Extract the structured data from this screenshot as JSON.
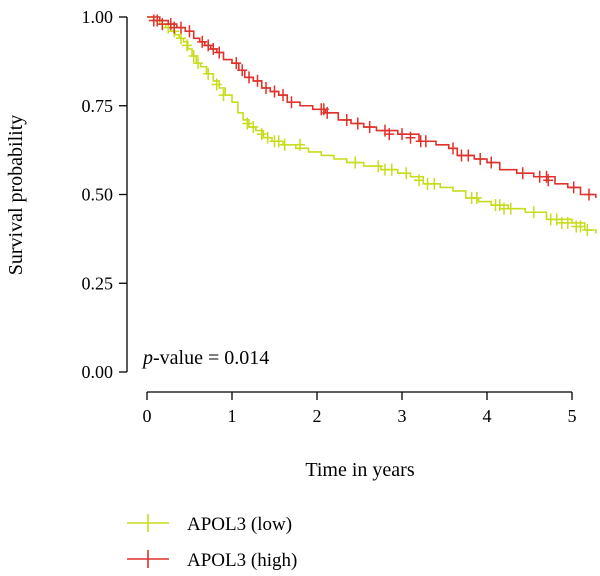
{
  "chart_data": {
    "type": "line",
    "subtype": "kaplan-meier-survival",
    "title": "",
    "xlabel": "Time in years",
    "ylabel": "Survival probability",
    "xlim": [
      -0.25,
      5.3
    ],
    "ylim": [
      0,
      1.0
    ],
    "x_ticks": [
      0,
      1,
      2,
      3,
      4,
      5
    ],
    "x_tick_labels": [
      "0",
      "1",
      "2",
      "3",
      "4",
      "5"
    ],
    "y_ticks": [
      0,
      0.25,
      0.5,
      0.75,
      1.0
    ],
    "y_tick_labels": [
      "0.00",
      "0.25",
      "0.50",
      "0.75",
      "1.00"
    ],
    "grid": false,
    "legend_position": "bottom-left",
    "annotation": {
      "italic": "p",
      "rest": "-value = 0.014"
    },
    "series": [
      {
        "name": "APOL3 (low)",
        "color": "#c8dc1e",
        "steps": [
          [
            0,
            1.0
          ],
          [
            0.08,
            0.99
          ],
          [
            0.15,
            0.98
          ],
          [
            0.22,
            0.97
          ],
          [
            0.28,
            0.96
          ],
          [
            0.33,
            0.95
          ],
          [
            0.38,
            0.94
          ],
          [
            0.43,
            0.93
          ],
          [
            0.48,
            0.91
          ],
          [
            0.53,
            0.89
          ],
          [
            0.58,
            0.87
          ],
          [
            0.63,
            0.86
          ],
          [
            0.7,
            0.84
          ],
          [
            0.78,
            0.82
          ],
          [
            0.85,
            0.8
          ],
          [
            0.92,
            0.78
          ],
          [
            1.0,
            0.76
          ],
          [
            1.07,
            0.73
          ],
          [
            1.13,
            0.71
          ],
          [
            1.2,
            0.69
          ],
          [
            1.28,
            0.68
          ],
          [
            1.37,
            0.66
          ],
          [
            1.47,
            0.65
          ],
          [
            1.6,
            0.64
          ],
          [
            1.75,
            0.63
          ],
          [
            1.9,
            0.62
          ],
          [
            2.05,
            0.61
          ],
          [
            2.2,
            0.6
          ],
          [
            2.35,
            0.59
          ],
          [
            2.55,
            0.58
          ],
          [
            2.75,
            0.57
          ],
          [
            2.95,
            0.56
          ],
          [
            3.1,
            0.55
          ],
          [
            3.25,
            0.53
          ],
          [
            3.45,
            0.52
          ],
          [
            3.6,
            0.51
          ],
          [
            3.75,
            0.49
          ],
          [
            3.9,
            0.48
          ],
          [
            4.05,
            0.47
          ],
          [
            4.25,
            0.46
          ],
          [
            4.45,
            0.45
          ],
          [
            4.7,
            0.43
          ],
          [
            5.0,
            0.42
          ],
          [
            5.15,
            0.4
          ],
          [
            5.28,
            0.39
          ]
        ],
        "censored": [
          [
            0.25,
            0.97
          ],
          [
            0.32,
            0.96
          ],
          [
            0.4,
            0.94
          ],
          [
            0.47,
            0.92
          ],
          [
            0.55,
            0.89
          ],
          [
            0.6,
            0.87
          ],
          [
            0.72,
            0.84
          ],
          [
            0.82,
            0.81
          ],
          [
            0.9,
            0.78
          ],
          [
            1.18,
            0.7
          ],
          [
            1.25,
            0.69
          ],
          [
            1.35,
            0.67
          ],
          [
            1.42,
            0.66
          ],
          [
            1.5,
            0.65
          ],
          [
            1.55,
            0.65
          ],
          [
            1.62,
            0.64
          ],
          [
            1.8,
            0.64
          ],
          [
            2.45,
            0.59
          ],
          [
            2.72,
            0.58
          ],
          [
            2.8,
            0.57
          ],
          [
            2.88,
            0.57
          ],
          [
            3.05,
            0.56
          ],
          [
            3.2,
            0.54
          ],
          [
            3.3,
            0.53
          ],
          [
            3.38,
            0.53
          ],
          [
            3.82,
            0.49
          ],
          [
            3.88,
            0.49
          ],
          [
            4.1,
            0.47
          ],
          [
            4.15,
            0.47
          ],
          [
            4.2,
            0.46
          ],
          [
            4.28,
            0.46
          ],
          [
            4.55,
            0.45
          ],
          [
            4.75,
            0.43
          ],
          [
            4.82,
            0.43
          ],
          [
            4.88,
            0.42
          ],
          [
            4.95,
            0.42
          ],
          [
            5.05,
            0.41
          ],
          [
            5.1,
            0.41
          ],
          [
            5.18,
            0.4
          ]
        ]
      },
      {
        "name": "APOL3 (high)",
        "color": "#e0312a",
        "steps": [
          [
            0,
            1.0
          ],
          [
            0.15,
            0.99
          ],
          [
            0.25,
            0.98
          ],
          [
            0.35,
            0.97
          ],
          [
            0.45,
            0.96
          ],
          [
            0.55,
            0.94
          ],
          [
            0.62,
            0.93
          ],
          [
            0.68,
            0.92
          ],
          [
            0.75,
            0.91
          ],
          [
            0.82,
            0.9
          ],
          [
            0.9,
            0.88
          ],
          [
            1.0,
            0.87
          ],
          [
            1.08,
            0.85
          ],
          [
            1.15,
            0.83
          ],
          [
            1.25,
            0.82
          ],
          [
            1.35,
            0.8
          ],
          [
            1.45,
            0.79
          ],
          [
            1.55,
            0.78
          ],
          [
            1.65,
            0.76
          ],
          [
            1.8,
            0.75
          ],
          [
            1.95,
            0.74
          ],
          [
            2.1,
            0.73
          ],
          [
            2.25,
            0.71
          ],
          [
            2.4,
            0.7
          ],
          [
            2.55,
            0.69
          ],
          [
            2.7,
            0.68
          ],
          [
            2.95,
            0.67
          ],
          [
            3.2,
            0.65
          ],
          [
            3.4,
            0.64
          ],
          [
            3.55,
            0.63
          ],
          [
            3.65,
            0.61
          ],
          [
            3.85,
            0.6
          ],
          [
            4.0,
            0.59
          ],
          [
            4.15,
            0.57
          ],
          [
            4.35,
            0.56
          ],
          [
            4.55,
            0.55
          ],
          [
            4.8,
            0.53
          ],
          [
            4.95,
            0.52
          ],
          [
            5.1,
            0.5
          ],
          [
            5.28,
            0.49
          ]
        ],
        "censored": [
          [
            0.08,
            0.99
          ],
          [
            0.12,
            0.99
          ],
          [
            0.18,
            0.98
          ],
          [
            0.28,
            0.98
          ],
          [
            0.32,
            0.97
          ],
          [
            0.4,
            0.97
          ],
          [
            0.5,
            0.96
          ],
          [
            0.65,
            0.93
          ],
          [
            0.72,
            0.92
          ],
          [
            0.78,
            0.91
          ],
          [
            0.85,
            0.9
          ],
          [
            1.05,
            0.87
          ],
          [
            1.12,
            0.85
          ],
          [
            1.2,
            0.83
          ],
          [
            1.3,
            0.82
          ],
          [
            1.4,
            0.8
          ],
          [
            1.5,
            0.79
          ],
          [
            1.6,
            0.78
          ],
          [
            1.7,
            0.76
          ],
          [
            2.05,
            0.74
          ],
          [
            2.08,
            0.74
          ],
          [
            2.12,
            0.73
          ],
          [
            2.35,
            0.71
          ],
          [
            2.48,
            0.7
          ],
          [
            2.62,
            0.69
          ],
          [
            2.8,
            0.68
          ],
          [
            2.85,
            0.67
          ],
          [
            3.0,
            0.67
          ],
          [
            3.1,
            0.66
          ],
          [
            3.22,
            0.65
          ],
          [
            3.28,
            0.65
          ],
          [
            3.6,
            0.63
          ],
          [
            3.7,
            0.61
          ],
          [
            3.78,
            0.61
          ],
          [
            3.92,
            0.6
          ],
          [
            4.05,
            0.59
          ],
          [
            4.42,
            0.56
          ],
          [
            4.62,
            0.55
          ],
          [
            4.7,
            0.55
          ],
          [
            4.72,
            0.54
          ],
          [
            5.02,
            0.52
          ],
          [
            5.2,
            0.5
          ]
        ]
      }
    ]
  }
}
